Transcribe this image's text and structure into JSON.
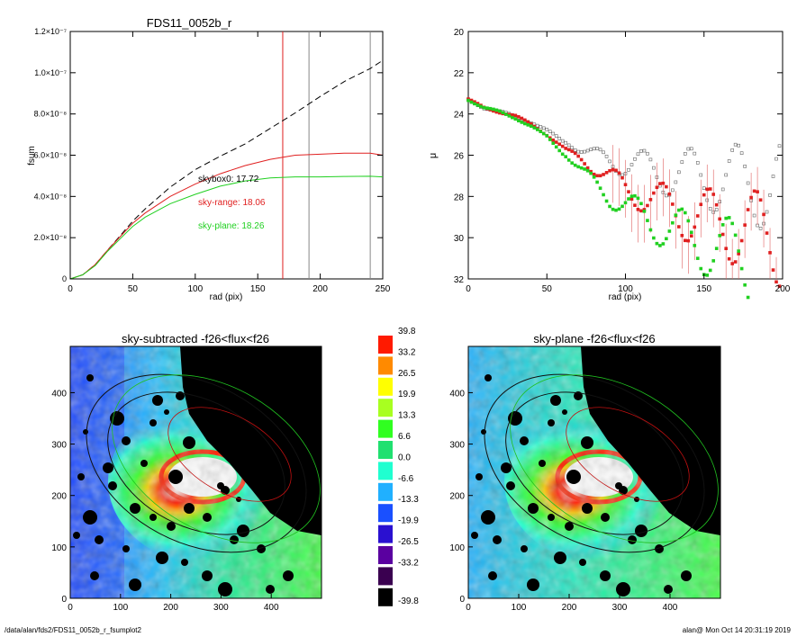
{
  "chart_data": [
    {
      "type": "line",
      "title": "FDS11_0052b_r",
      "xlabel": "rad (pix)",
      "ylabel": "fsum",
      "xlim": [
        0,
        250
      ],
      "ylim": [
        0,
        1.2e-07
      ],
      "xticks": [
        "0",
        "50",
        "100",
        "150",
        "200",
        "250"
      ],
      "yticks": [
        "0",
        "2.0×10⁻⁸",
        "4.0×10⁻⁸",
        "6.0×10⁻⁸",
        "8.0×10⁻⁸",
        "1.0×10⁻⁷",
        "1.2×10⁻⁷"
      ],
      "yticks_values": [
        0,
        2e-08,
        4e-08,
        6e-08,
        8e-08,
        1e-07,
        1.2e-07
      ],
      "vlines": [
        {
          "x": 170,
          "color": "#e02020"
        },
        {
          "x": 191,
          "color": "#888888"
        },
        {
          "x": 240,
          "color": "#888888"
        }
      ],
      "annotations": [
        {
          "text": "skybox0: 17.72",
          "color": "#000000"
        },
        {
          "text": "sky-range: 18.06",
          "color": "#e02020"
        },
        {
          "text": "sky-plane: 18.26",
          "color": "#20d020"
        }
      ],
      "series": [
        {
          "color": "#000000",
          "style": "dashed",
          "x": [
            0,
            10,
            20,
            30,
            40,
            50,
            60,
            80,
            100,
            120,
            140,
            160,
            180,
            200,
            220,
            240,
            250
          ],
          "y": [
            0,
            2e-09,
            7e-09,
            1.4e-08,
            2.1e-08,
            2.8e-08,
            3.4e-08,
            4.45e-08,
            5.3e-08,
            5.95e-08,
            6.55e-08,
            7.3e-08,
            8.05e-08,
            8.85e-08,
            9.6e-08,
            1.02e-07,
            1.06e-07
          ]
        },
        {
          "color": "#e02020",
          "style": "solid",
          "x": [
            0,
            10,
            20,
            30,
            40,
            50,
            60,
            80,
            100,
            120,
            140,
            160,
            180,
            200,
            220,
            240,
            250
          ],
          "y": [
            0,
            2e-09,
            7e-09,
            1.4e-08,
            2.05e-08,
            2.7e-08,
            3.2e-08,
            4e-08,
            4.6e-08,
            5.1e-08,
            5.5e-08,
            5.8e-08,
            6e-08,
            6.05e-08,
            6.1e-08,
            6.1e-08,
            6e-08
          ]
        },
        {
          "color": "#20d020",
          "style": "solid",
          "x": [
            0,
            10,
            20,
            30,
            40,
            50,
            60,
            80,
            100,
            120,
            140,
            160,
            180,
            200,
            220,
            240,
            250
          ],
          "y": [
            0,
            2e-09,
            6.5e-09,
            1.35e-08,
            1.95e-08,
            2.55e-08,
            3e-08,
            3.65e-08,
            4.1e-08,
            4.5e-08,
            4.75e-08,
            4.9e-08,
            4.95e-08,
            4.95e-08,
            4.97e-08,
            4.98e-08,
            4.95e-08
          ]
        }
      ]
    },
    {
      "type": "scatter",
      "xlabel": "rad (pix)",
      "ylabel": "μ",
      "xlim": [
        0,
        200
      ],
      "ylim": [
        32,
        20
      ],
      "xticks": [
        "0",
        "50",
        "100",
        "150",
        "200"
      ],
      "yticks": [
        "20",
        "22",
        "24",
        "26",
        "28",
        "30",
        "32"
      ],
      "series": [
        {
          "color": "#666666",
          "x": [
            0,
            10,
            20,
            30,
            40,
            50,
            60,
            70,
            80,
            90,
            100,
            110,
            120,
            130,
            140,
            150,
            160,
            170,
            180,
            190,
            200
          ],
          "y": [
            23.3,
            23.7,
            23.9,
            24.1,
            24.4,
            24.8,
            25.3,
            25.7,
            26.0,
            26.2,
            26.4,
            26.6,
            26.8,
            26.9,
            27.0,
            27.1,
            27.2,
            27.3,
            27.4,
            27.5,
            27.6
          ]
        },
        {
          "color": "#e02020",
          "x": [
            0,
            10,
            20,
            30,
            40,
            50,
            60,
            70,
            80,
            90,
            100,
            110,
            120,
            130,
            140,
            150,
            160,
            170,
            180,
            190,
            200
          ],
          "y": [
            23.3,
            23.7,
            23.9,
            24.1,
            24.5,
            25.0,
            25.6,
            26.1,
            26.6,
            27.1,
            27.6,
            27.9,
            28.3,
            28.6,
            28.9,
            29.1,
            29.3,
            29.5,
            29.7,
            29.9,
            30.1
          ]
        },
        {
          "color": "#20d020",
          "x": [
            0,
            10,
            20,
            30,
            40,
            50,
            60,
            70,
            80,
            90,
            100,
            110,
            120,
            130,
            140,
            150,
            160,
            170,
            180
          ],
          "y": [
            23.3,
            23.7,
            23.9,
            24.2,
            24.6,
            25.1,
            25.9,
            26.6,
            27.3,
            28.0,
            28.5,
            28.9,
            29.3,
            29.7,
            30.0,
            30.3,
            30.6,
            30.9,
            31.2
          ]
        }
      ]
    },
    {
      "type": "heatmap",
      "title": "sky-subtracted -f26<flux<f26",
      "xlim": [
        0,
        500
      ],
      "ylim": [
        0,
        490
      ],
      "xticks": [
        "0",
        "100",
        "200",
        "300",
        "400"
      ],
      "yticks": [
        "0",
        "100",
        "200",
        "300",
        "400"
      ]
    },
    {
      "type": "heatmap",
      "title": "sky-plane -f26<flux<f26",
      "xlim": [
        0,
        500
      ],
      "ylim": [
        0,
        490
      ],
      "xticks": [
        "0",
        "100",
        "200",
        "300",
        "400"
      ],
      "yticks": [
        "0",
        "100",
        "200",
        "300",
        "400"
      ]
    }
  ],
  "colorbar": {
    "labels": [
      "39.8",
      "33.2",
      "26.5",
      "19.9",
      "13.3",
      "6.6",
      "0.0",
      "-6.6",
      "-13.3",
      "-19.9",
      "-26.5",
      "-33.2",
      "-39.8"
    ],
    "colors": [
      "#ff1a00",
      "#ff8a00",
      "#ffff00",
      "#a8ff20",
      "#30ff20",
      "#20e070",
      "#20ffd0",
      "#20b0ff",
      "#1a50ff",
      "#2a10d0",
      "#5a00a0",
      "#3a0050",
      "#000000"
    ]
  },
  "footer": {
    "left": "/data/alan/fds2/FDS11_0052b_r_fsumplot2",
    "right": "alan@  Mon Oct 14 20:31:19 2019"
  }
}
